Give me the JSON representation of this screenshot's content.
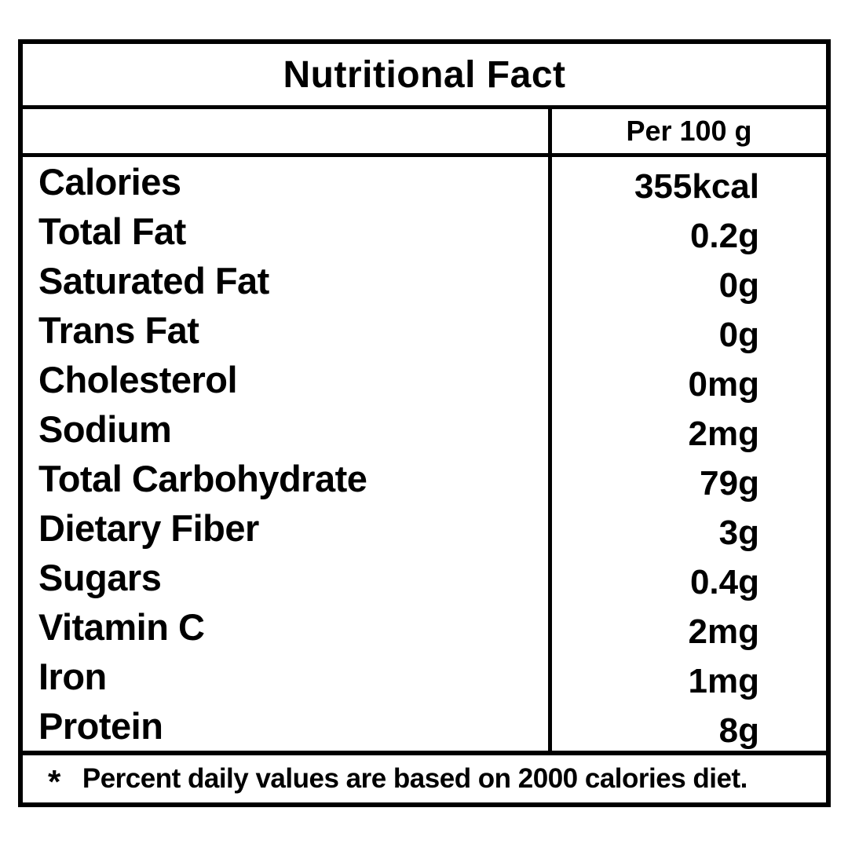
{
  "title": "Nutritional Fact",
  "column_header": "Per 100 g",
  "rows": [
    {
      "label": "Calories",
      "value": "355kcal"
    },
    {
      "label": "Total Fat",
      "value": "0.2g"
    },
    {
      "label": "Saturated Fat",
      "value": "0g"
    },
    {
      "label": "Trans Fat",
      "value": "0g"
    },
    {
      "label": "Cholesterol",
      "value": "0mg"
    },
    {
      "label": "Sodium",
      "value": "2mg"
    },
    {
      "label": "Total Carbohydrate",
      "value": "79g"
    },
    {
      "label": "Dietary Fiber",
      "value": "3g"
    },
    {
      "label": "Sugars",
      "value": "0.4g"
    },
    {
      "label": "Vitamin C",
      "value": "2mg"
    },
    {
      "label": "Iron",
      "value": "1mg"
    },
    {
      "label": "Protein",
      "value": "8g"
    }
  ],
  "footnote": {
    "marker": "*",
    "text": "Percent daily values are based on 2000 calories diet."
  },
  "colors": {
    "ink": "#000000",
    "background": "#ffffff"
  }
}
